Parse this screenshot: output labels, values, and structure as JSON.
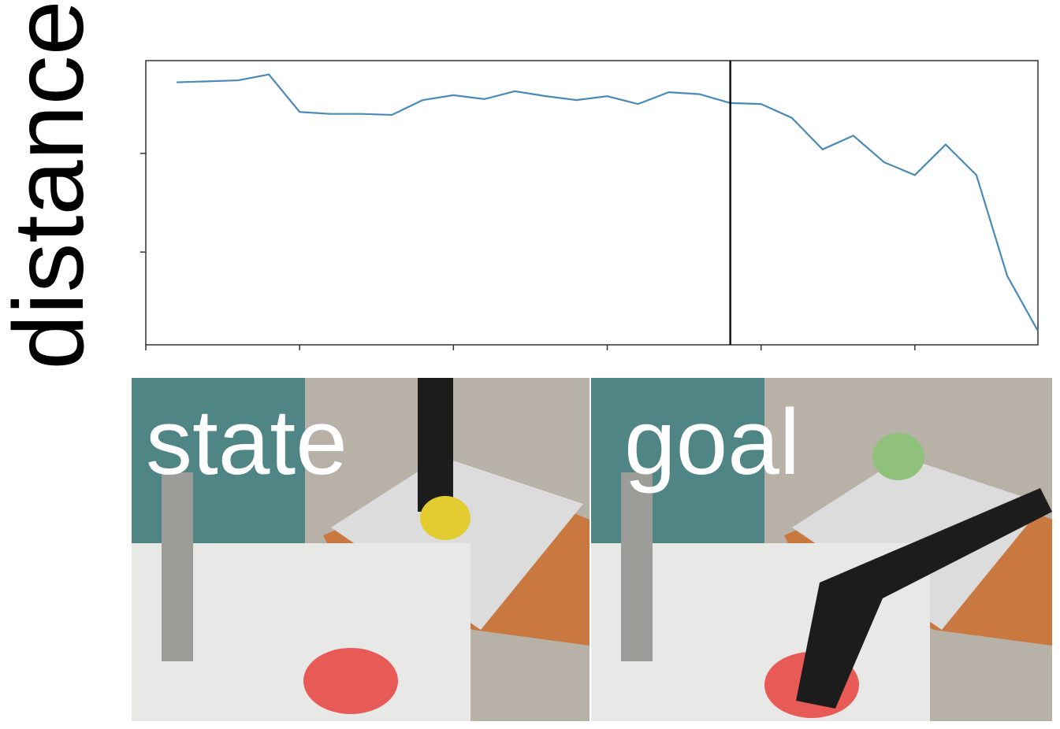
{
  "chart_data": {
    "type": "line",
    "ylabel": "distance",
    "x": [
      1,
      3,
      4,
      5,
      6,
      7,
      8,
      9,
      10,
      11,
      12,
      13,
      14,
      15,
      16,
      17,
      18,
      19,
      20,
      21,
      22,
      23,
      24,
      25,
      26,
      27,
      28,
      29
    ],
    "series": [
      {
        "color": "#4a8ab8",
        "values": [
          2.72,
          2.74,
          2.8,
          2.42,
          2.4,
          2.4,
          2.39,
          2.54,
          2.59,
          2.55,
          2.63,
          2.58,
          2.54,
          2.58,
          2.5,
          2.62,
          2.6,
          2.51,
          2.5,
          2.36,
          2.04,
          2.18,
          1.91,
          1.78,
          2.09,
          1.78,
          0.76,
          0.2
        ]
      }
    ],
    "xlim": [
      0,
      29
    ],
    "xticks": [
      0,
      5,
      10,
      15,
      20,
      25
    ],
    "ylim": [
      0.06,
      2.94
    ],
    "yticks": [
      1,
      2
    ],
    "vline": 19
  },
  "images": [
    {
      "label": "state"
    },
    {
      "label": "goal"
    }
  ]
}
